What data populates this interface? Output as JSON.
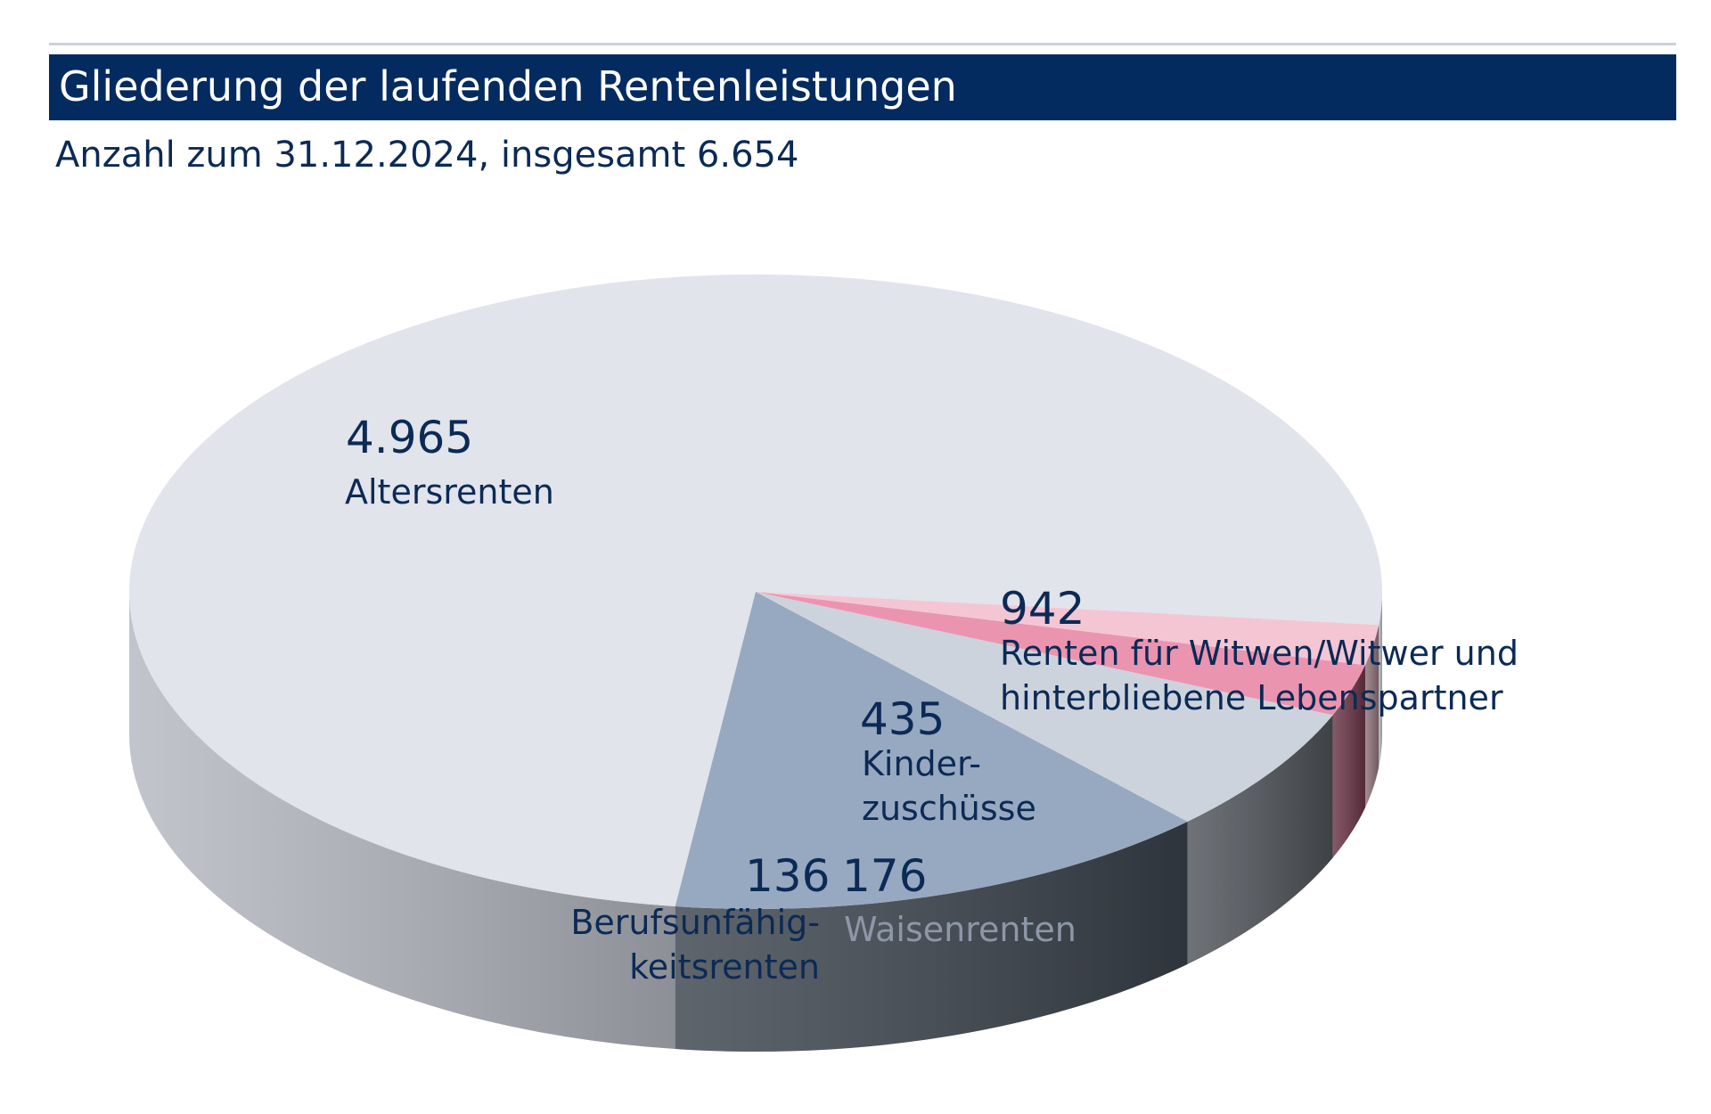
{
  "header": {
    "title": "Gliederung der laufenden Rentenleistungen",
    "subtitle": "Anzahl zum 31.12.2024, insgesamt 6.654"
  },
  "chart_data": {
    "type": "pie",
    "style": "3d",
    "title": "Gliederung der laufenden Rentenleistungen",
    "subtitle": "Anzahl zum 31.12.2024, insgesamt 6.654",
    "total": 6654,
    "slices": [
      {
        "label": "Altersrenten",
        "value": 4965,
        "value_label": "4.965",
        "color": "#e1e4eb",
        "side_color": "#b4b8c0"
      },
      {
        "label": "Renten für Witwen/Witwer und hinterbliebene Lebenspartner",
        "label_lines": [
          "Renten für Witwen/Witwer und",
          "hinterbliebene Lebenspartner"
        ],
        "value": 942,
        "value_label": "942",
        "color": "#97a9c0",
        "side_color": "#3b434c"
      },
      {
        "label": "Kinderzuschüsse",
        "label_lines": [
          "Kinder-",
          "zuschüsse"
        ],
        "value": 435,
        "value_label": "435",
        "color": "#cdd3dd",
        "side_color": "#4f5359"
      },
      {
        "label": "Waisenrenten",
        "value": 176,
        "value_label": "176",
        "color": "#eb94b0",
        "side_color": "#6a3446"
      },
      {
        "label": "Berufsunfähigkeitsrenten",
        "label_lines": [
          "Berufsunfähig-",
          "keitsrenten"
        ],
        "value": 136,
        "value_label": "136",
        "color": "#f4c6d4",
        "side_color": "#8f7379"
      }
    ]
  }
}
